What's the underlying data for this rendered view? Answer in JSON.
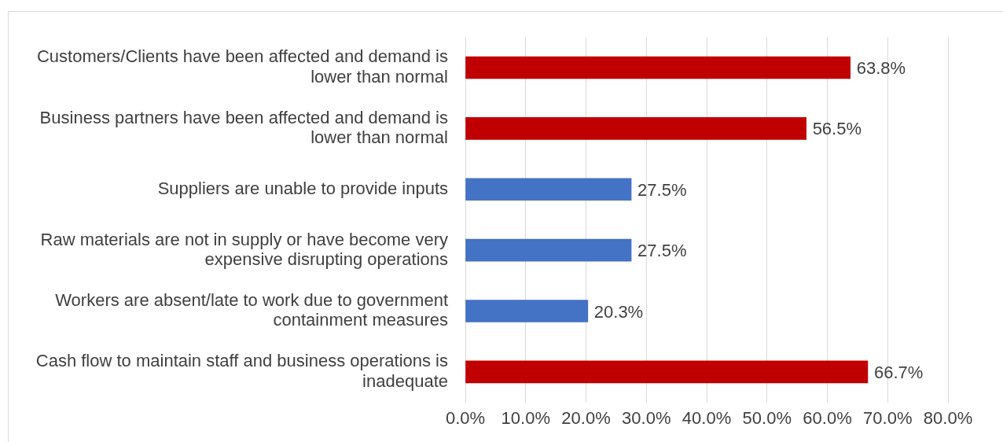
{
  "chart_data": {
    "type": "bar",
    "orientation": "horizontal",
    "categories": [
      "Customers/Clients have been affected and demand is lower than normal",
      "Business partners have been affected and demand is lower than normal",
      "Suppliers are unable to provide inputs",
      "Raw materials are not in supply or have become very expensive disrupting operations",
      "Workers are absent/late to work due to government containment measures",
      "Cash flow to maintain staff and business operations is inadequate"
    ],
    "values": [
      63.8,
      56.5,
      27.5,
      27.5,
      20.3,
      66.7
    ],
    "colors": [
      "#c00000",
      "#c00000",
      "#4472c4",
      "#4472c4",
      "#4472c4",
      "#c00000"
    ],
    "value_labels": [
      "63.8%",
      "56.5%",
      "27.5%",
      "27.5%",
      "20.3%",
      "66.7%"
    ],
    "xlim": [
      0,
      80
    ],
    "xticks": [
      {
        "value": 0,
        "label": "0.0%"
      },
      {
        "value": 10,
        "label": "10.0%"
      },
      {
        "value": 20,
        "label": "20.0%"
      },
      {
        "value": 30,
        "label": "30.0%"
      },
      {
        "value": 40,
        "label": "40.0%"
      },
      {
        "value": 50,
        "label": "50.0%"
      },
      {
        "value": 60,
        "label": "60.0%"
      },
      {
        "value": 70,
        "label": "70.0%"
      },
      {
        "value": 80,
        "label": "80.0%"
      }
    ],
    "grid": "x",
    "legend": false
  }
}
